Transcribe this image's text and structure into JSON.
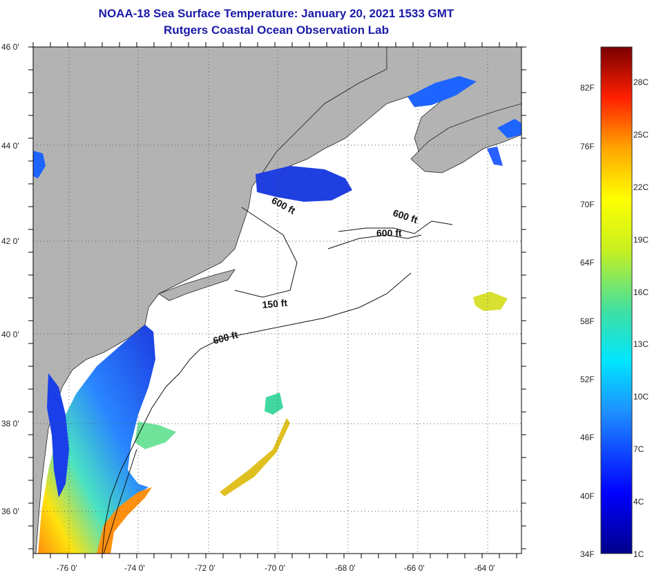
{
  "title": {
    "line1": "NOAA-18 Sea Surface Temperature:  January 20, 2021 1533 GMT",
    "line2": "Rutgers Coastal Ocean Observation Lab"
  },
  "map": {
    "lat_labels": [
      "46 0'",
      "44 0'",
      "42 0'",
      "40 0'",
      "38 0'",
      "36 0'"
    ],
    "lon_labels": [
      "-76 0'",
      "-74 0'",
      "-72 0'",
      "-70 0'",
      "-68 0'",
      "-66 0'",
      "-64 0'"
    ],
    "depth_labels": [
      "600 ft",
      "600 ft",
      "600 ft",
      "150 ft",
      "600 ft"
    ],
    "colors": {
      "land": "#b3b3b3",
      "water": "#ffffff",
      "grid": "#555555"
    }
  },
  "colorbar": {
    "fahrenheit": [
      "82F",
      "76F",
      "70F",
      "64F",
      "58F",
      "52F",
      "46F",
      "40F",
      "34F"
    ],
    "celsius": [
      "28C",
      "25C",
      "22C",
      "19C",
      "16C",
      "13C",
      "10C",
      "7C",
      "4C",
      "1C"
    ]
  }
}
